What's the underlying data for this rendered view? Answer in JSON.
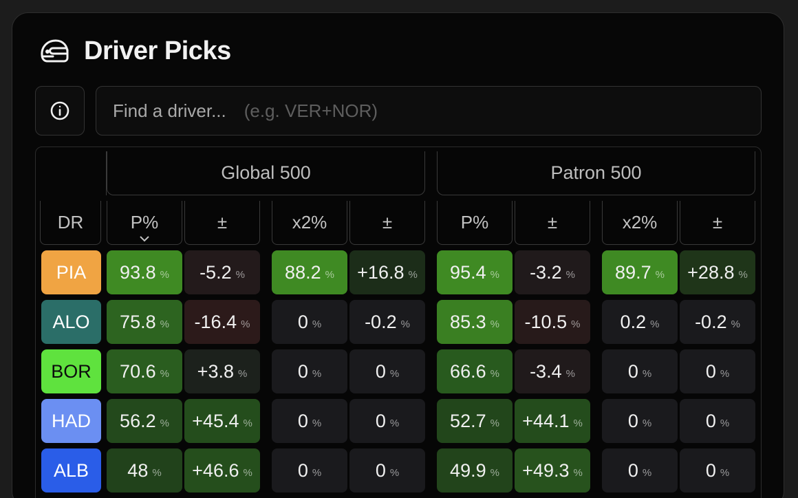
{
  "title": "Driver Picks",
  "search": {
    "placeholder": "Find a driver...",
    "hint": "(e.g. VER+NOR)"
  },
  "groups": [
    "Global 500",
    "Patron 500"
  ],
  "columns": [
    "DR",
    "P%",
    "±",
    "x2%",
    "±",
    "P%",
    "±",
    "x2%",
    "±"
  ],
  "percent_sign": "%",
  "colors": {
    "strong_green": "#3f8a23",
    "mid_green": "#2f6a1f",
    "dark_green": "#1e3a17",
    "deep_green": "#183017",
    "neutral": "#1a1a1d",
    "slight_red": "#241a1a",
    "mid_red": "#2c1a1a"
  },
  "rows": [
    {
      "driver": "PIA",
      "driver_bg": "#f0a443",
      "driver_fg": "#ffffff",
      "cells": [
        {
          "v": "93.8",
          "c": "#3f8a23"
        },
        {
          "v": "-5.2",
          "c": "#231a1b"
        },
        {
          "v": "88.2",
          "c": "#3f8a23"
        },
        {
          "v": "+16.8",
          "c": "#1c2d19"
        },
        {
          "v": "95.4",
          "c": "#3f8a23"
        },
        {
          "v": "-3.2",
          "c": "#201a1b"
        },
        {
          "v": "89.7",
          "c": "#3f8a23"
        },
        {
          "v": "+28.8",
          "c": "#1f3519"
        }
      ]
    },
    {
      "driver": "ALO",
      "driver_bg": "#2b6e68",
      "driver_fg": "#ffffff",
      "cells": [
        {
          "v": "75.8",
          "c": "#2d6420"
        },
        {
          "v": "-16.4",
          "c": "#2c1a1a"
        },
        {
          "v": "0",
          "c": "#1a1a1d"
        },
        {
          "v": "-0.2",
          "c": "#1a1a1d"
        },
        {
          "v": "85.3",
          "c": "#3a7f22"
        },
        {
          "v": "-10.5",
          "c": "#271a1a"
        },
        {
          "v": "0.2",
          "c": "#1a1a1d"
        },
        {
          "v": "-0.2",
          "c": "#1a1a1d"
        }
      ]
    },
    {
      "driver": "BOR",
      "driver_bg": "#5fe23e",
      "driver_fg": "#0d0d0d",
      "cells": [
        {
          "v": "70.6",
          "c": "#2a5d1f"
        },
        {
          "v": "+3.8",
          "c": "#1c211c"
        },
        {
          "v": "0",
          "c": "#1a1a1d"
        },
        {
          "v": "0",
          "c": "#1a1a1d"
        },
        {
          "v": "66.6",
          "c": "#285a1e"
        },
        {
          "v": "-3.4",
          "c": "#201a1b"
        },
        {
          "v": "0",
          "c": "#1a1a1d"
        },
        {
          "v": "0",
          "c": "#1a1a1d"
        }
      ]
    },
    {
      "driver": "HAD",
      "driver_bg": "#6b8ff2",
      "driver_fg": "#ffffff",
      "cells": [
        {
          "v": "56.2",
          "c": "#23491c"
        },
        {
          "v": "+45.4",
          "c": "#244d1c"
        },
        {
          "v": "0",
          "c": "#1a1a1d"
        },
        {
          "v": "0",
          "c": "#1a1a1d"
        },
        {
          "v": "52.7",
          "c": "#22461b"
        },
        {
          "v": "+44.1",
          "c": "#244c1c"
        },
        {
          "v": "0",
          "c": "#1a1a1d"
        },
        {
          "v": "0",
          "c": "#1a1a1d"
        }
      ]
    },
    {
      "driver": "ALB",
      "driver_bg": "#2a5de8",
      "driver_fg": "#ffffff",
      "cells": [
        {
          "v": "48",
          "c": "#21421b"
        },
        {
          "v": "+46.6",
          "c": "#254e1c"
        },
        {
          "v": "0",
          "c": "#1a1a1d"
        },
        {
          "v": "0",
          "c": "#1a1a1d"
        },
        {
          "v": "49.9",
          "c": "#22441b"
        },
        {
          "v": "+49.3",
          "c": "#27521d"
        },
        {
          "v": "0",
          "c": "#1a1a1d"
        },
        {
          "v": "0",
          "c": "#1a1a1d"
        }
      ]
    }
  ]
}
